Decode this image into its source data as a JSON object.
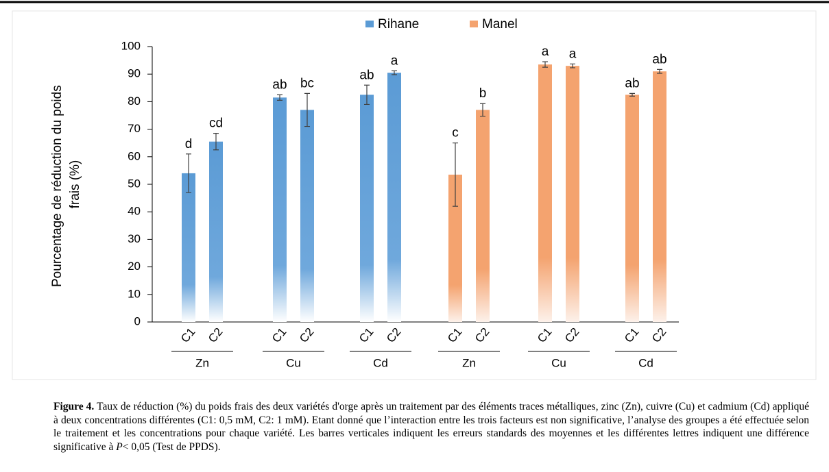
{
  "chart_data": {
    "type": "bar",
    "ylabel": [
      "Pourcentage de réduction du poids",
      "frais (%)"
    ],
    "categories": [
      "C1",
      "C2",
      "C1",
      "C2",
      "C1",
      "C2",
      "C1",
      "C2",
      "C1",
      "C2",
      "C1",
      "C2"
    ],
    "groups": [
      "Zn",
      "Cu",
      "Cd",
      "Zn",
      "Cu",
      "Cd"
    ],
    "series": [
      {
        "name": "Rihane",
        "color": "#5b9bd5",
        "values": [
          54,
          65.5,
          81.5,
          77,
          82.5,
          90.5,
          null,
          null,
          null,
          null,
          null,
          null
        ],
        "errors": [
          7,
          3,
          1,
          6,
          3.5,
          0.7,
          null,
          null,
          null,
          null,
          null,
          null
        ],
        "letters": [
          "d",
          "cd",
          "ab",
          "bc",
          "ab",
          "a",
          null,
          null,
          null,
          null,
          null,
          null
        ]
      },
      {
        "name": "Manel",
        "color": "#f4a36f",
        "values": [
          null,
          null,
          null,
          null,
          null,
          null,
          53.5,
          77,
          93.5,
          93,
          82.5,
          91
        ],
        "errors": [
          null,
          null,
          null,
          null,
          null,
          null,
          11.5,
          2.3,
          1,
          0.7,
          0.5,
          0.7
        ],
        "letters": [
          null,
          null,
          null,
          null,
          null,
          null,
          "c",
          "b",
          "a",
          "a",
          "ab",
          "ab"
        ]
      }
    ],
    "ylim": [
      0,
      100
    ],
    "yticks": [
      0,
      10,
      20,
      30,
      40,
      50,
      60,
      70,
      80,
      90,
      100
    ],
    "legend": "top"
  },
  "caption": {
    "label": "Figure 4.",
    "text_before": " Taux de réduction (%) du poids frais des deux variétés d'orge après un traitement par des éléments traces métalliques, zinc (Zn), cuivre (Cu) et cadmium (Cd) appliqué à deux concentrations différentes (C1: 0,5 mM, C2: 1 mM). Etant donné que l’interaction entre les trois facteurs est non significative, l’analyse des groupes a été effectuée selon le traitement et les concentrations pour chaque variété. Les barres verticales indiquent les erreurs standards des moyennes et les différentes lettres indiquent une différence significative à ",
    "italic": "P",
    "text_after": "< 0,05 (Test de PPDS)."
  }
}
